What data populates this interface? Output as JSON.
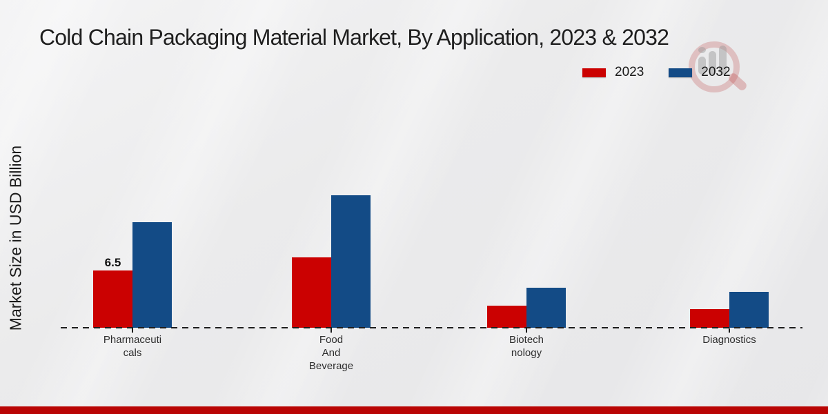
{
  "page": {
    "title": "Cold Chain Packaging Material Market, By Application, 2023 & 2032",
    "ylabel": "Market Size in USD Billion"
  },
  "legend": [
    {
      "label": "2023",
      "color": "#cb0101"
    },
    {
      "label": "2032",
      "color": "#134b86"
    }
  ],
  "chart_data": {
    "type": "bar",
    "title": "Cold Chain Packaging Material Market, By Application, 2023 & 2032",
    "xlabel": "",
    "ylabel": "Market Size in USD Billion",
    "categories": [
      "Pharmaceuticals",
      "Food And Beverage",
      "Biotechnology",
      "Diagnostics"
    ],
    "category_label_lines": [
      [
        "Pharmaceuti",
        "cals"
      ],
      [
        "Food",
        "And",
        "Beverage"
      ],
      [
        "Biotech",
        "nology"
      ],
      [
        "Diagnostics"
      ]
    ],
    "series": [
      {
        "name": "2023",
        "color": "#cb0101",
        "values": [
          6.5,
          8.0,
          2.5,
          2.1
        ]
      },
      {
        "name": "2032",
        "color": "#134b86",
        "values": [
          12.0,
          15.0,
          4.5,
          4.1
        ]
      }
    ],
    "bar_labels": [
      [
        "6.5",
        "",
        "",
        ""
      ],
      [
        "",
        "",
        "",
        ""
      ]
    ],
    "ylim": [
      0,
      16
    ],
    "grid": false,
    "legend_position": "top-right",
    "baseline_style": "dashed",
    "units": "USD Billion"
  },
  "footer": {
    "bar_color": "#b90504"
  },
  "watermark": {
    "icon": "magnifier-bar-chart-logo"
  }
}
